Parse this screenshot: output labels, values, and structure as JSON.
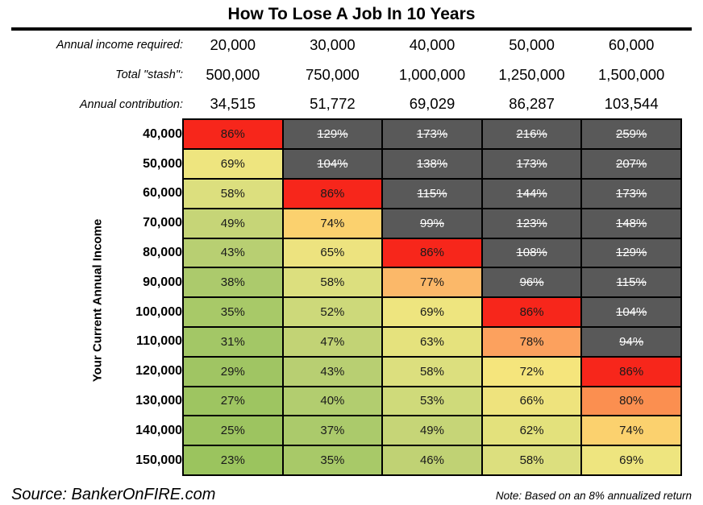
{
  "title": "How To Lose A Job In 10 Years",
  "header_rows": [
    {
      "label": "Annual income required:",
      "values": [
        "20,000",
        "30,000",
        "40,000",
        "50,000",
        "60,000"
      ]
    },
    {
      "label": "Total \"stash\":",
      "values": [
        "500,000",
        "750,000",
        "1,000,000",
        "1,250,000",
        "1,500,000"
      ]
    },
    {
      "label": "Annual contribution:",
      "values": [
        "34,515",
        "51,772",
        "69,029",
        "86,287",
        "103,544"
      ]
    }
  ],
  "y_axis_label": "Your Current Annual Income",
  "footer": {
    "source": "Source: BankerOnFIRE.com",
    "note": "Note: Based on an 8% annualized return"
  },
  "palette": {
    "dark_cell": "#595959",
    "dark_cell_text": "#FFFFFF",
    "cell_text": "#1A1A1A",
    "red": "#F7261B",
    "border": "#000000",
    "background": "#FFFFFF"
  },
  "chart_data": {
    "type": "heatmap",
    "title": "How To Lose A Job In 10 Years",
    "x_headers": {
      "annual_income_required": [
        "20,000",
        "30,000",
        "40,000",
        "50,000",
        "60,000"
      ],
      "total_stash": [
        "500,000",
        "750,000",
        "1,000,000",
        "1,250,000",
        "1,500,000"
      ],
      "annual_contribution": [
        "34,515",
        "51,772",
        "69,029",
        "86,287",
        "103,544"
      ]
    },
    "ylabel": "Your Current Annual Income",
    "row_categories": [
      "40,000",
      "50,000",
      "60,000",
      "70,000",
      "80,000",
      "90,000",
      "100,000",
      "110,000",
      "120,000",
      "130,000",
      "140,000",
      "150,000"
    ],
    "unit": "%",
    "values": [
      [
        86,
        129,
        173,
        216,
        259
      ],
      [
        69,
        104,
        138,
        173,
        207
      ],
      [
        58,
        86,
        115,
        144,
        173
      ],
      [
        49,
        74,
        99,
        123,
        148
      ],
      [
        43,
        65,
        86,
        108,
        129
      ],
      [
        38,
        58,
        77,
        96,
        115
      ],
      [
        35,
        52,
        69,
        86,
        104
      ],
      [
        31,
        47,
        63,
        78,
        94
      ],
      [
        29,
        43,
        58,
        72,
        86
      ],
      [
        27,
        40,
        53,
        66,
        80
      ],
      [
        25,
        37,
        49,
        62,
        74
      ],
      [
        23,
        35,
        46,
        58,
        69
      ]
    ],
    "struck": [
      [
        0,
        1,
        1,
        1,
        1
      ],
      [
        0,
        1,
        1,
        1,
        1
      ],
      [
        0,
        0,
        1,
        1,
        1
      ],
      [
        0,
        0,
        1,
        1,
        1
      ],
      [
        0,
        0,
        0,
        1,
        1
      ],
      [
        0,
        0,
        0,
        1,
        1
      ],
      [
        0,
        0,
        0,
        0,
        1
      ],
      [
        0,
        0,
        0,
        0,
        1
      ],
      [
        0,
        0,
        0,
        0,
        0
      ],
      [
        0,
        0,
        0,
        0,
        0
      ],
      [
        0,
        0,
        0,
        0,
        0
      ],
      [
        0,
        0,
        0,
        0,
        0
      ]
    ],
    "cell_colors": [
      [
        "#F7261B",
        "#595959",
        "#595959",
        "#595959",
        "#595959"
      ],
      [
        "#EEE57F",
        "#595959",
        "#595959",
        "#595959",
        "#595959"
      ],
      [
        "#DCDF7E",
        "#F7261B",
        "#595959",
        "#595959",
        "#595959"
      ],
      [
        "#C6D577",
        "#FBD16E",
        "#595959",
        "#595959",
        "#595959"
      ],
      [
        "#B8CF72",
        "#EDE37F",
        "#F7261B",
        "#595959",
        "#595959"
      ],
      [
        "#ACCA6C",
        "#DCDF7E",
        "#FBB869",
        "#595959",
        "#595959"
      ],
      [
        "#A8C968",
        "#CDD97A",
        "#EEE57F",
        "#F7261B",
        "#595959"
      ],
      [
        "#A3C766",
        "#C2D375",
        "#E5E27D",
        "#FCA15E",
        "#595959"
      ],
      [
        "#A0C563",
        "#B8CF72",
        "#DCDF7E",
        "#F5E57C",
        "#F7261B"
      ],
      [
        "#9EC561",
        "#B2CD6F",
        "#CFDA7A",
        "#EEE37D",
        "#FB8F50"
      ],
      [
        "#9DC460",
        "#ABCA6B",
        "#C6D577",
        "#E3E17C",
        "#FBD16E"
      ],
      [
        "#9BC45E",
        "#A8C968",
        "#C0D274",
        "#DCDF7E",
        "#EEE57F"
      ]
    ]
  }
}
